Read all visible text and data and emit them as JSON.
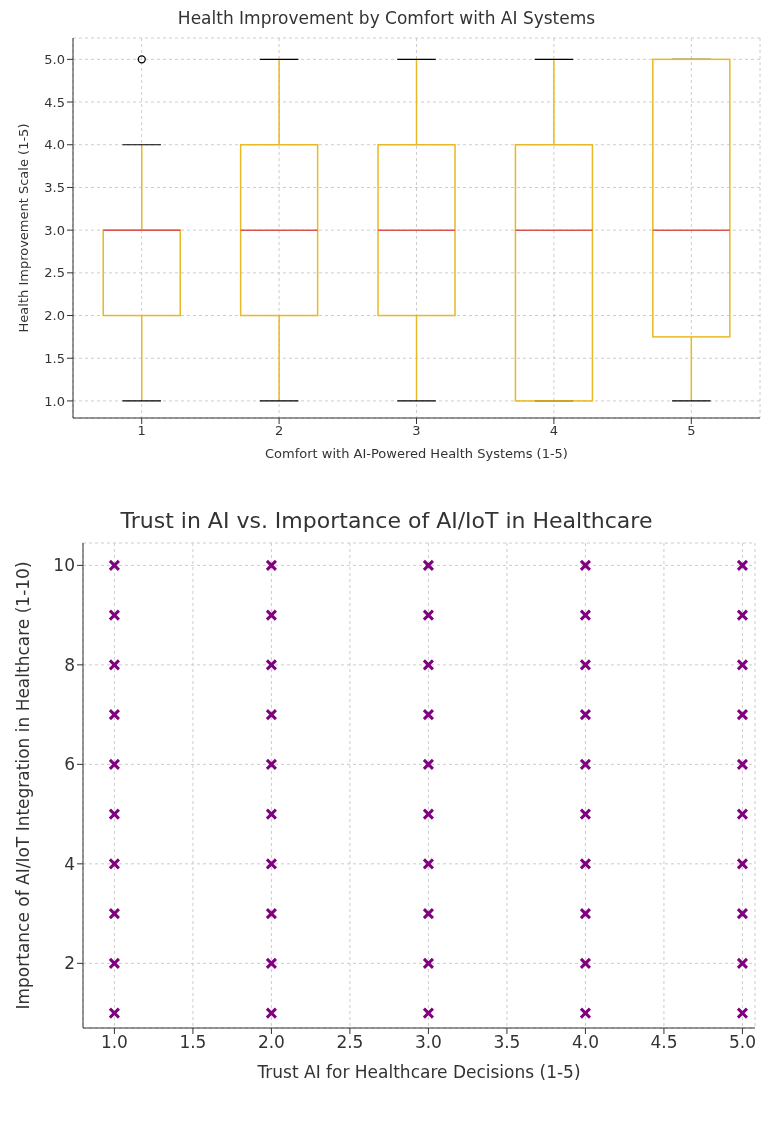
{
  "chart_data": [
    {
      "type": "box",
      "title": "Health Improvement by Comfort with AI Systems",
      "xlabel": "Comfort with AI-Powered Health Systems (1-5)",
      "ylabel": "Health Improvement Scale (1-5)",
      "categories": [
        "1",
        "2",
        "3",
        "4",
        "5"
      ],
      "series": [
        {
          "color": "#e8b923",
          "boxes": [
            {
              "low": 1,
              "q1": 2,
              "median": 3,
              "q3": 3,
              "high": 4,
              "outliers": [
                5
              ]
            },
            {
              "low": 1,
              "q1": 2,
              "median": 3,
              "q3": 4,
              "high": 5
            },
            {
              "low": 1,
              "q1": 2,
              "median": 3,
              "q3": 4,
              "high": 5
            },
            {
              "low": 1,
              "q1": 1,
              "median": 3,
              "q3": 4,
              "high": 5
            },
            {
              "low": 1,
              "q1": 1.75,
              "median": 3,
              "q3": 5,
              "high": 5
            }
          ]
        }
      ],
      "ylim": [
        0.8,
        5.25
      ],
      "yticks": [
        {
          "value": 1,
          "label": "1.0"
        },
        {
          "value": 1.5,
          "label": "1.5"
        },
        {
          "value": 2,
          "label": "2.0"
        },
        {
          "value": 2.5,
          "label": "2.5"
        },
        {
          "value": 3,
          "label": "3.0"
        },
        {
          "value": 3.5,
          "label": "3.5"
        },
        {
          "value": 4,
          "label": "4.0"
        },
        {
          "value": 4.5,
          "label": "4.5"
        },
        {
          "value": 5,
          "label": "5.0"
        }
      ],
      "grid": true
    },
    {
      "type": "scatter",
      "title": "Trust in AI vs. Importance of AI/IoT in Healthcare",
      "xlabel": "Trust AI for Healthcare Decisions (1-5)",
      "ylabel": "Importance of AI/IoT Integration in Healthcare (1-10)",
      "x": [
        1,
        1,
        1,
        1,
        1,
        1,
        1,
        1,
        1,
        1,
        2,
        2,
        2,
        2,
        2,
        2,
        2,
        2,
        2,
        2,
        3,
        3,
        3,
        3,
        3,
        3,
        3,
        3,
        3,
        3,
        4,
        4,
        4,
        4,
        4,
        4,
        4,
        4,
        4,
        4,
        5,
        5,
        5,
        5,
        5,
        5,
        5,
        5,
        5,
        5
      ],
      "series": [
        {
          "color": "#800080",
          "values": [
            1,
            2,
            3,
            4,
            5,
            6,
            7,
            8,
            9,
            10,
            1,
            2,
            3,
            4,
            5,
            6,
            7,
            8,
            9,
            10,
            1,
            2,
            3,
            4,
            5,
            6,
            7,
            8,
            9,
            10,
            1,
            2,
            3,
            4,
            5,
            6,
            7,
            8,
            9,
            10,
            1,
            2,
            3,
            4,
            5,
            6,
            7,
            8,
            9,
            10
          ]
        }
      ],
      "marker": "cross",
      "xlim": [
        0.8,
        5.08
      ],
      "xticks": [
        {
          "value": 1,
          "label": "1.0"
        },
        {
          "value": 1.5,
          "label": "1.5"
        },
        {
          "value": 2,
          "label": "2.0"
        },
        {
          "value": 2.5,
          "label": "2.5"
        },
        {
          "value": 3,
          "label": "3.0"
        },
        {
          "value": 3.5,
          "label": "3.5"
        },
        {
          "value": 4,
          "label": "4.0"
        },
        {
          "value": 4.5,
          "label": "4.5"
        },
        {
          "value": 5,
          "label": "5.0"
        }
      ],
      "ylim": [
        0.7,
        10.45
      ],
      "yticks": [
        2,
        4,
        6,
        8,
        10
      ],
      "grid": true
    }
  ]
}
